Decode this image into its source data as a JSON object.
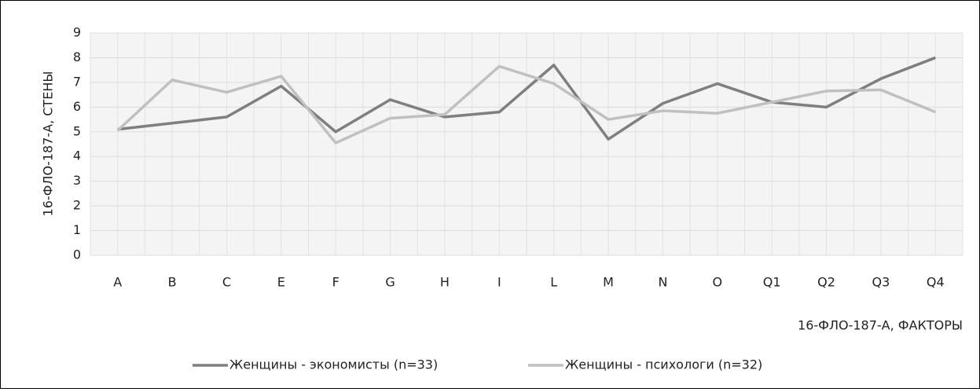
{
  "chart_data": {
    "type": "line",
    "categories": [
      "A",
      "B",
      "C",
      "E",
      "F",
      "G",
      "H",
      "I",
      "L",
      "M",
      "N",
      "O",
      "Q1",
      "Q2",
      "Q3",
      "Q4"
    ],
    "series": [
      {
        "name": "Женщины - экономисты (n=33)",
        "color": "#7f7f7f",
        "values": [
          5.1,
          5.35,
          5.6,
          6.85,
          5.0,
          6.3,
          5.6,
          5.8,
          7.7,
          4.7,
          6.15,
          6.95,
          6.2,
          6.0,
          7.15,
          8.0
        ]
      },
      {
        "name": "Женщины - психологи (n=32)",
        "color": "#c0c0c0",
        "values": [
          5.05,
          7.1,
          6.6,
          7.25,
          4.55,
          5.55,
          5.7,
          7.65,
          6.95,
          5.5,
          5.85,
          5.75,
          6.2,
          6.65,
          6.7,
          5.8
        ]
      }
    ],
    "ylim": [
      0,
      9
    ],
    "yticks": [
      0,
      1,
      2,
      3,
      4,
      5,
      6,
      7,
      8,
      9
    ],
    "ylabel": "16-ФЛО-187-А, СТЕНЫ",
    "xlabel": "16-ФЛО-187-А, ФАКТОРЫ",
    "grid": true,
    "legend": "bottom"
  }
}
